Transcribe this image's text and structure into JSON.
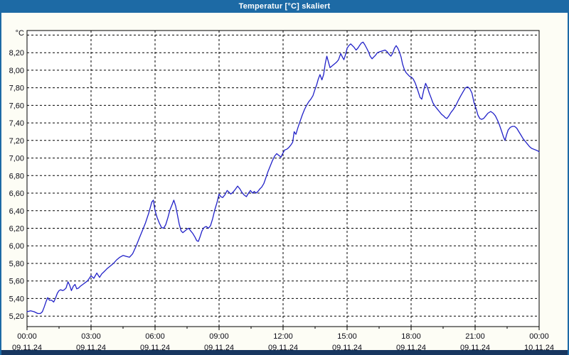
{
  "window": {
    "title": "Temperatur [°C] skaliert"
  },
  "colors": {
    "titlebar": "#1d6aa5",
    "frame_side": "#1d6aa5",
    "frame_bottom": "#17365f",
    "window_bg": "#fdfdf5",
    "plot_bg": "#ffffff",
    "plot_border": "#000000",
    "grid": "#000000",
    "line": "#2121c8",
    "label_text": "#0a0a14"
  },
  "chart_data": {
    "type": "line",
    "title": "Temperatur [°C] skaliert",
    "ylabel": "°C",
    "xlabel": "",
    "grid": true,
    "legend": "none",
    "ylim": [
      5.08,
      8.452
    ],
    "xlim_hours": [
      0,
      24
    ],
    "y_ticks": [
      {
        "value": 8.2,
        "label": "8,20"
      },
      {
        "value": 8.0,
        "label": "8,00"
      },
      {
        "value": 7.8,
        "label": "7,80"
      },
      {
        "value": 7.6,
        "label": "7,60"
      },
      {
        "value": 7.4,
        "label": "7,40"
      },
      {
        "value": 7.2,
        "label": "7,20"
      },
      {
        "value": 7.0,
        "label": "7,00"
      },
      {
        "value": 6.8,
        "label": "6,80"
      },
      {
        "value": 6.6,
        "label": "6,60"
      },
      {
        "value": 6.4,
        "label": "6,40"
      },
      {
        "value": 6.2,
        "label": "6,20"
      },
      {
        "value": 6.0,
        "label": "6,00"
      },
      {
        "value": 5.8,
        "label": "5,80"
      },
      {
        "value": 5.6,
        "label": "5,60"
      },
      {
        "value": 5.4,
        "label": "5,40"
      },
      {
        "value": 5.2,
        "label": "5,20"
      }
    ],
    "y_grid_unlabeled": [
      8.4
    ],
    "x_ticks": [
      {
        "hour": 0,
        "time": "00:00",
        "date": "09.11.24"
      },
      {
        "hour": 3,
        "time": "03:00",
        "date": "09.11.24"
      },
      {
        "hour": 6,
        "time": "06:00",
        "date": "09.11.24"
      },
      {
        "hour": 9,
        "time": "09:00",
        "date": "09.11.24"
      },
      {
        "hour": 12,
        "time": "12:00",
        "date": "09.11.24"
      },
      {
        "hour": 15,
        "time": "15:00",
        "date": "09.11.24"
      },
      {
        "hour": 18,
        "time": "18:00",
        "date": "09.11.24"
      },
      {
        "hour": 21,
        "time": "21:00",
        "date": "09.11.24"
      },
      {
        "hour": 24,
        "time": "00:00",
        "date": "10.11.24"
      }
    ],
    "x_minor_tick_hours": [
      1.5,
      4.5,
      7.5,
      10.5,
      13.5,
      16.5,
      19.5,
      22.5
    ],
    "series": [
      {
        "name": "Temperatur",
        "color": "#2121c8",
        "points": [
          [
            0,
            5.25
          ],
          [
            0.17,
            5.26
          ],
          [
            0.33,
            5.25
          ],
          [
            0.5,
            5.23
          ],
          [
            0.63,
            5.23
          ],
          [
            0.72,
            5.25
          ],
          [
            0.8,
            5.3
          ],
          [
            0.9,
            5.37
          ],
          [
            0.97,
            5.41
          ],
          [
            1.05,
            5.38
          ],
          [
            1.15,
            5.38
          ],
          [
            1.25,
            5.36
          ],
          [
            1.33,
            5.4
          ],
          [
            1.42,
            5.46
          ],
          [
            1.5,
            5.49
          ],
          [
            1.58,
            5.5
          ],
          [
            1.67,
            5.49
          ],
          [
            1.75,
            5.5
          ],
          [
            1.83,
            5.52
          ],
          [
            1.92,
            5.59
          ],
          [
            2,
            5.55
          ],
          [
            2.08,
            5.49
          ],
          [
            2.17,
            5.54
          ],
          [
            2.25,
            5.56
          ],
          [
            2.33,
            5.51
          ],
          [
            2.42,
            5.52
          ],
          [
            2.5,
            5.54
          ],
          [
            2.67,
            5.57
          ],
          [
            2.83,
            5.6
          ],
          [
            2.92,
            5.63
          ],
          [
            3,
            5.66
          ],
          [
            3.13,
            5.63
          ],
          [
            3.27,
            5.69
          ],
          [
            3.4,
            5.64
          ],
          [
            3.5,
            5.68
          ],
          [
            3.63,
            5.71
          ],
          [
            3.75,
            5.74
          ],
          [
            3.9,
            5.77
          ],
          [
            4.05,
            5.8
          ],
          [
            4.2,
            5.84
          ],
          [
            4.35,
            5.87
          ],
          [
            4.5,
            5.89
          ],
          [
            4.65,
            5.88
          ],
          [
            4.8,
            5.87
          ],
          [
            4.95,
            5.91
          ],
          [
            5.1,
            5.99
          ],
          [
            5.25,
            6.08
          ],
          [
            5.4,
            6.17
          ],
          [
            5.55,
            6.26
          ],
          [
            5.7,
            6.37
          ],
          [
            5.85,
            6.5
          ],
          [
            5.92,
            6.52
          ],
          [
            6,
            6.4
          ],
          [
            6.1,
            6.32
          ],
          [
            6.2,
            6.26
          ],
          [
            6.3,
            6.21
          ],
          [
            6.4,
            6.2
          ],
          [
            6.5,
            6.24
          ],
          [
            6.6,
            6.32
          ],
          [
            6.7,
            6.41
          ],
          [
            6.8,
            6.47
          ],
          [
            6.88,
            6.52
          ],
          [
            6.97,
            6.45
          ],
          [
            7.05,
            6.35
          ],
          [
            7.13,
            6.25
          ],
          [
            7.22,
            6.17
          ],
          [
            7.3,
            6.15
          ],
          [
            7.4,
            6.17
          ],
          [
            7.5,
            6.19
          ],
          [
            7.58,
            6.2
          ],
          [
            7.67,
            6.17
          ],
          [
            7.77,
            6.14
          ],
          [
            7.87,
            6.1
          ],
          [
            7.95,
            6.06
          ],
          [
            8.03,
            6.05
          ],
          [
            8.12,
            6.11
          ],
          [
            8.2,
            6.17
          ],
          [
            8.3,
            6.21
          ],
          [
            8.4,
            6.22
          ],
          [
            8.5,
            6.2
          ],
          [
            8.6,
            6.23
          ],
          [
            8.7,
            6.31
          ],
          [
            8.8,
            6.41
          ],
          [
            8.9,
            6.49
          ],
          [
            9,
            6.59
          ],
          [
            9.08,
            6.56
          ],
          [
            9.17,
            6.55
          ],
          [
            9.27,
            6.58
          ],
          [
            9.38,
            6.63
          ],
          [
            9.47,
            6.61
          ],
          [
            9.55,
            6.59
          ],
          [
            9.65,
            6.61
          ],
          [
            9.75,
            6.64
          ],
          [
            9.87,
            6.68
          ],
          [
            9.97,
            6.65
          ],
          [
            10.07,
            6.61
          ],
          [
            10.17,
            6.58
          ],
          [
            10.28,
            6.56
          ],
          [
            10.38,
            6.6
          ],
          [
            10.47,
            6.63
          ],
          [
            10.57,
            6.6
          ],
          [
            10.65,
            6.62
          ],
          [
            10.73,
            6.6
          ],
          [
            10.82,
            6.62
          ],
          [
            10.92,
            6.65
          ],
          [
            11,
            6.67
          ],
          [
            11.1,
            6.71
          ],
          [
            11.2,
            6.78
          ],
          [
            11.3,
            6.85
          ],
          [
            11.4,
            6.91
          ],
          [
            11.5,
            6.97
          ],
          [
            11.6,
            7.02
          ],
          [
            11.7,
            7.05
          ],
          [
            11.8,
            7.03
          ],
          [
            11.9,
            7.01
          ],
          [
            11.98,
            7.05
          ],
          [
            12.07,
            7.09
          ],
          [
            12.17,
            7.1
          ],
          [
            12.27,
            7.12
          ],
          [
            12.37,
            7.15
          ],
          [
            12.45,
            7.18
          ],
          [
            12.52,
            7.3
          ],
          [
            12.6,
            7.27
          ],
          [
            12.7,
            7.35
          ],
          [
            12.8,
            7.42
          ],
          [
            12.9,
            7.49
          ],
          [
            13,
            7.55
          ],
          [
            13.1,
            7.6
          ],
          [
            13.2,
            7.64
          ],
          [
            13.3,
            7.67
          ],
          [
            13.4,
            7.71
          ],
          [
            13.48,
            7.77
          ],
          [
            13.57,
            7.83
          ],
          [
            13.65,
            7.9
          ],
          [
            13.73,
            7.95
          ],
          [
            13.82,
            7.89
          ],
          [
            13.9,
            7.95
          ],
          [
            13.98,
            8.08
          ],
          [
            14.05,
            8.16
          ],
          [
            14.13,
            8.09
          ],
          [
            14.2,
            8.03
          ],
          [
            14.3,
            8.05
          ],
          [
            14.4,
            8.07
          ],
          [
            14.5,
            8.09
          ],
          [
            14.6,
            8.12
          ],
          [
            14.7,
            8.19
          ],
          [
            14.78,
            8.15
          ],
          [
            14.85,
            8.12
          ],
          [
            14.93,
            8.18
          ],
          [
            15,
            8.25
          ],
          [
            15.08,
            8.28
          ],
          [
            15.17,
            8.3
          ],
          [
            15.25,
            8.28
          ],
          [
            15.33,
            8.26
          ],
          [
            15.42,
            8.23
          ],
          [
            15.5,
            8.25
          ],
          [
            15.58,
            8.28
          ],
          [
            15.67,
            8.31
          ],
          [
            15.75,
            8.32
          ],
          [
            15.83,
            8.29
          ],
          [
            15.92,
            8.25
          ],
          [
            16,
            8.21
          ],
          [
            16.08,
            8.16
          ],
          [
            16.17,
            8.13
          ],
          [
            16.25,
            8.15
          ],
          [
            16.33,
            8.17
          ],
          [
            16.42,
            8.2
          ],
          [
            16.53,
            8.21
          ],
          [
            16.65,
            8.22
          ],
          [
            16.78,
            8.23
          ],
          [
            16.88,
            8.21
          ],
          [
            16.97,
            8.18
          ],
          [
            17.05,
            8.16
          ],
          [
            17.13,
            8.19
          ],
          [
            17.22,
            8.25
          ],
          [
            17.3,
            8.28
          ],
          [
            17.38,
            8.25
          ],
          [
            17.45,
            8.21
          ],
          [
            17.53,
            8.15
          ],
          [
            17.6,
            8.07
          ],
          [
            17.68,
            8.01
          ],
          [
            17.77,
            7.97
          ],
          [
            17.85,
            7.95
          ],
          [
            17.93,
            7.93
          ],
          [
            18.02,
            7.92
          ],
          [
            18.1,
            7.9
          ],
          [
            18.2,
            7.85
          ],
          [
            18.3,
            7.78
          ],
          [
            18.42,
            7.69
          ],
          [
            18.5,
            7.67
          ],
          [
            18.6,
            7.78
          ],
          [
            18.68,
            7.85
          ],
          [
            18.77,
            7.8
          ],
          [
            18.85,
            7.74
          ],
          [
            18.93,
            7.69
          ],
          [
            19.02,
            7.63
          ],
          [
            19.12,
            7.59
          ],
          [
            19.22,
            7.56
          ],
          [
            19.32,
            7.53
          ],
          [
            19.42,
            7.5
          ],
          [
            19.52,
            7.48
          ],
          [
            19.6,
            7.46
          ],
          [
            19.68,
            7.45
          ],
          [
            19.77,
            7.48
          ],
          [
            19.87,
            7.52
          ],
          [
            19.97,
            7.55
          ],
          [
            20.1,
            7.6
          ],
          [
            20.22,
            7.66
          ],
          [
            20.33,
            7.71
          ],
          [
            20.45,
            7.76
          ],
          [
            20.55,
            7.8
          ],
          [
            20.65,
            7.81
          ],
          [
            20.75,
            7.79
          ],
          [
            20.85,
            7.74
          ],
          [
            20.95,
            7.63
          ],
          [
            21.05,
            7.56
          ],
          [
            21.13,
            7.49
          ],
          [
            21.22,
            7.45
          ],
          [
            21.3,
            7.44
          ],
          [
            21.4,
            7.45
          ],
          [
            21.5,
            7.48
          ],
          [
            21.6,
            7.51
          ],
          [
            21.73,
            7.53
          ],
          [
            21.85,
            7.51
          ],
          [
            21.95,
            7.48
          ],
          [
            22.05,
            7.43
          ],
          [
            22.15,
            7.37
          ],
          [
            22.25,
            7.3
          ],
          [
            22.33,
            7.24
          ],
          [
            22.4,
            7.2
          ],
          [
            22.48,
            7.27
          ],
          [
            22.55,
            7.32
          ],
          [
            22.65,
            7.35
          ],
          [
            22.75,
            7.36
          ],
          [
            22.85,
            7.36
          ],
          [
            22.95,
            7.34
          ],
          [
            23.05,
            7.3
          ],
          [
            23.15,
            7.26
          ],
          [
            23.25,
            7.22
          ],
          [
            23.35,
            7.19
          ],
          [
            23.45,
            7.16
          ],
          [
            23.55,
            7.13
          ],
          [
            23.65,
            7.11
          ],
          [
            23.75,
            7.1
          ],
          [
            23.85,
            7.09
          ],
          [
            23.95,
            7.08
          ],
          [
            24,
            7.07
          ]
        ]
      }
    ]
  }
}
